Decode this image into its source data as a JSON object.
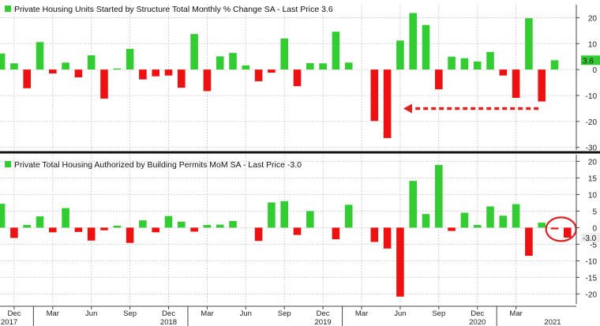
{
  "colors": {
    "positive": "#33cc33",
    "negative": "#ee1111",
    "grid": "#b9b9b9",
    "axis_text": "#222222",
    "annotation": "#dd2222",
    "background": "#ffffff",
    "last_label_positive_bg": "#33cc33",
    "last_label_negative_bg": "#eeeeee"
  },
  "x_axis": {
    "month_labels": [
      "Dec",
      "Mar",
      "Jun",
      "Sep",
      "Dec",
      "Mar",
      "Jun",
      "Sep",
      "Dec",
      "Mar",
      "Jun",
      "Sep",
      "Dec",
      "Mar"
    ],
    "month_indices": [
      1,
      4,
      7,
      10,
      13,
      16,
      19,
      22,
      25,
      28,
      31,
      34,
      37,
      40
    ],
    "year_labels": [
      "2017",
      "2018",
      "2019",
      "2020",
      "2021"
    ],
    "year_indices": [
      0,
      13,
      25,
      37,
      49
    ],
    "year_tick_indices": [
      2.5,
      14.5,
      26.5,
      38.5
    ]
  },
  "chart_data": [
    {
      "type": "bar",
      "title": "Private Housing Units Started by Structure Total Monthly % Change SA - Last Price 3.6",
      "legend": "top-left",
      "last_value_label": "3.6",
      "ylim": [
        -31,
        25
      ],
      "yticks": [
        20,
        10,
        0,
        -10,
        -20,
        -30
      ],
      "grid": true,
      "values": [
        6.2,
        2.4,
        -7.2,
        10.6,
        -1.5,
        2.7,
        -3.0,
        5.5,
        -11.2,
        0.4,
        8.0,
        -3.8,
        -2.6,
        -2.3,
        -7.0,
        13.7,
        -8.3,
        5.1,
        6.4,
        1.6,
        -4.5,
        -1.2,
        12.0,
        -6.4,
        2.5,
        2.4,
        14.6,
        2.7,
        0.0,
        -19.8,
        -26.4,
        11.2,
        21.8,
        17.2,
        -7.6,
        5.0,
        4.4,
        3.1,
        6.8,
        -2.3,
        -10.9,
        19.8,
        -12.3,
        3.6
      ],
      "annotation": {
        "type": "dashed-arrow",
        "from_index": 42,
        "to_index": 31,
        "y": -12.3
      }
    },
    {
      "type": "bar",
      "title": "Private Total Housing Authorized by Building Permits MoM SA - Last Price -3.0",
      "legend": "top-left",
      "last_value_label": "-3.0",
      "ylim": [
        -23,
        22
      ],
      "yticks": [
        20,
        15,
        10,
        5,
        0,
        -5,
        -10,
        -15,
        -20
      ],
      "grid": true,
      "values": [
        7.2,
        -3.1,
        0.8,
        3.4,
        -1.4,
        5.9,
        -1.3,
        -3.9,
        -0.8,
        0.6,
        -4.6,
        2.2,
        -1.4,
        3.5,
        1.8,
        -1.2,
        0.8,
        0.9,
        2.0,
        0.0,
        -4.0,
        7.6,
        8.0,
        -2.2,
        5.0,
        0.0,
        -3.5,
        6.9,
        0.0,
        -4.3,
        -6.3,
        -20.8,
        14.1,
        4.1,
        18.9,
        -1.0,
        4.5,
        0.8,
        6.4,
        3.6,
        7.1,
        -8.5,
        1.5,
        -0.5,
        -3.0
      ],
      "annotation": {
        "type": "circle",
        "index_from": 43,
        "index_to": 44
      }
    }
  ]
}
